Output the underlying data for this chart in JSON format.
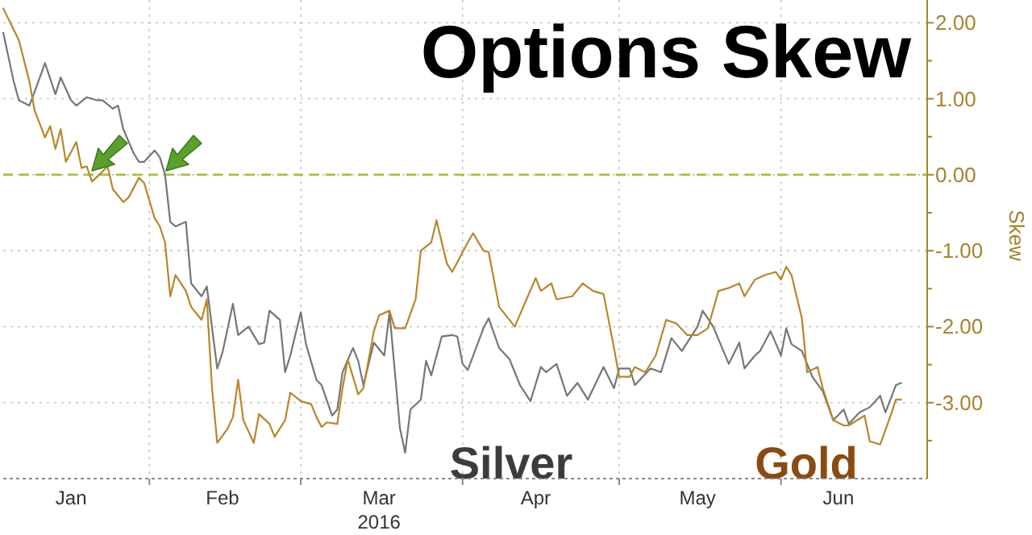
{
  "chart_data": {
    "type": "line",
    "title": "Options Skew",
    "xlabel": "2016",
    "ylabel": "Skew",
    "xlim": [
      "2016-01-04",
      "2016-06-29"
    ],
    "xticks": [
      {
        "value": "2016-01-17",
        "label": "Jan"
      },
      {
        "value": "2016-02-01",
        "label": null
      },
      {
        "value": "2016-02-15",
        "label": "Feb"
      },
      {
        "value": "2016-03-01",
        "label": null
      },
      {
        "value": "2016-03-16",
        "label": "Mar"
      },
      {
        "value": "2016-04-01",
        "label": null
      },
      {
        "value": "2016-04-15",
        "label": "Apr"
      },
      {
        "value": "2016-05-01",
        "label": null
      },
      {
        "value": "2016-05-16",
        "label": "May"
      },
      {
        "value": "2016-06-01",
        "label": null
      },
      {
        "value": "2016-06-12",
        "label": "Jun"
      }
    ],
    "ylim": [
      -4,
      2.3
    ],
    "yticks": [
      {
        "value": -3.5,
        "label": null
      },
      {
        "value": -3,
        "label": "-3.00"
      },
      {
        "value": -2.5,
        "label": null
      },
      {
        "value": -2,
        "label": "-2.00"
      },
      {
        "value": -1.5,
        "label": null
      },
      {
        "value": -1,
        "label": "-1.00"
      },
      {
        "value": -0.5,
        "label": null
      },
      {
        "value": 0,
        "label": "0.00"
      },
      {
        "value": 0.5,
        "label": null
      },
      {
        "value": 1,
        "label": "1.00"
      },
      {
        "value": 1.5,
        "label": null
      },
      {
        "value": 2,
        "label": "2.00"
      }
    ],
    "grid": true,
    "legend": false,
    "line_style": "solid",
    "ref_lines": [
      {
        "axis": "y",
        "value": 0,
        "label": null,
        "color": "#a6c03c",
        "line_style": "dashed"
      }
    ],
    "series": [
      {
        "name": "Silver",
        "color": "#767676",
        "x": [
          "2016-01-04",
          "2016-01-06",
          "2016-01-07",
          "2016-01-09",
          "2016-01-10",
          "2016-01-12",
          "2016-01-14",
          "2016-01-15",
          "2016-01-17",
          "2016-01-18",
          "2016-01-20",
          "2016-01-22",
          "2016-01-23",
          "2016-01-25",
          "2016-01-26",
          "2016-01-27",
          "2016-01-29",
          "2016-01-30",
          "2016-01-31",
          "2016-02-02",
          "2016-02-03",
          "2016-02-04",
          "2016-02-05",
          "2016-02-06",
          "2016-02-08",
          "2016-02-09",
          "2016-02-11",
          "2016-02-12",
          "2016-02-14",
          "2016-02-15",
          "2016-02-17",
          "2016-02-18",
          "2016-02-20",
          "2016-02-22",
          "2016-02-23",
          "2016-02-24",
          "2016-02-26",
          "2016-02-27",
          "2016-02-28",
          "2016-03-01",
          "2016-03-02",
          "2016-03-04",
          "2016-03-05",
          "2016-03-07",
          "2016-03-08",
          "2016-03-09",
          "2016-03-11",
          "2016-03-12",
          "2016-03-13",
          "2016-03-15",
          "2016-03-17",
          "2016-03-18",
          "2016-03-20",
          "2016-03-21",
          "2016-03-22",
          "2016-03-24",
          "2016-03-25",
          "2016-03-26",
          "2016-03-28",
          "2016-03-30",
          "2016-03-31",
          "2016-04-01",
          "2016-04-02",
          "2016-04-05",
          "2016-04-06",
          "2016-04-08",
          "2016-04-10",
          "2016-04-12",
          "2016-04-14",
          "2016-04-16",
          "2016-04-17",
          "2016-04-19",
          "2016-04-21",
          "2016-04-23",
          "2016-04-25",
          "2016-04-28",
          "2016-04-30",
          "2016-05-01",
          "2016-05-03",
          "2016-05-04",
          "2016-05-07",
          "2016-05-09",
          "2016-05-11",
          "2016-05-13",
          "2016-05-16",
          "2016-05-17",
          "2016-05-19",
          "2016-05-22",
          "2016-05-24",
          "2016-05-25",
          "2016-05-27",
          "2016-05-28",
          "2016-05-30",
          "2016-06-01",
          "2016-06-02",
          "2016-06-03",
          "2016-06-05",
          "2016-06-07",
          "2016-06-09",
          "2016-06-11",
          "2016-06-13",
          "2016-06-14",
          "2016-06-16",
          "2016-06-18",
          "2016-06-20",
          "2016-06-21",
          "2016-06-23",
          "2016-06-24"
        ],
        "values": [
          1.87,
          1.23,
          0.98,
          0.91,
          1.09,
          1.47,
          1.06,
          1.28,
          0.98,
          0.91,
          1.02,
          0.98,
          0.98,
          0.87,
          0.91,
          0.6,
          0.28,
          0.17,
          0.17,
          0.32,
          0.23,
          0,
          -0.62,
          -0.68,
          -0.62,
          -1.43,
          -1.6,
          -1.47,
          -2.55,
          -2.34,
          -1.7,
          -2.11,
          -2,
          -2.23,
          -2.21,
          -1.79,
          -1.91,
          -2.6,
          -2.38,
          -1.81,
          -2.23,
          -2.7,
          -2.77,
          -3.17,
          -3.09,
          -2.6,
          -2.28,
          -2.45,
          -2.77,
          -2.21,
          -2.38,
          -1.81,
          -3.34,
          -3.66,
          -3.09,
          -2.96,
          -2.45,
          -2.64,
          -2.13,
          -2.11,
          -2.13,
          -2.49,
          -2.57,
          -2.02,
          -1.89,
          -2.28,
          -2.43,
          -2.77,
          -2.98,
          -2.53,
          -2.6,
          -2.49,
          -2.91,
          -2.74,
          -2.96,
          -2.53,
          -2.81,
          -2.55,
          -2.55,
          -2.77,
          -2.55,
          -2.6,
          -2.15,
          -2.32,
          -2,
          -1.79,
          -2,
          -2.49,
          -2.21,
          -2.55,
          -2.38,
          -2.32,
          -2.06,
          -2.38,
          -2.02,
          -2.23,
          -2.32,
          -2.66,
          -2.85,
          -3.23,
          -3.09,
          -3.28,
          -3.13,
          -3.06,
          -2.91,
          -3.13,
          -2.77,
          -2.74
        ]
      },
      {
        "name": "Gold",
        "color": "#b8862b",
        "x": [
          "2016-01-04",
          "2016-01-06",
          "2016-01-07",
          "2016-01-09",
          "2016-01-10",
          "2016-01-12",
          "2016-01-13",
          "2016-01-14",
          "2016-01-15",
          "2016-01-16",
          "2016-01-18",
          "2016-01-19",
          "2016-01-20",
          "2016-01-21",
          "2016-01-23",
          "2016-01-24",
          "2016-01-25",
          "2016-01-27",
          "2016-01-28",
          "2016-01-30",
          "2016-01-31",
          "2016-02-02",
          "2016-02-03",
          "2016-02-04",
          "2016-02-05",
          "2016-02-06",
          "2016-02-08",
          "2016-02-09",
          "2016-02-11",
          "2016-02-12",
          "2016-02-13",
          "2016-02-14",
          "2016-02-16",
          "2016-02-17",
          "2016-02-18",
          "2016-02-19",
          "2016-02-21",
          "2016-02-22",
          "2016-02-24",
          "2016-02-25",
          "2016-02-27",
          "2016-02-28",
          "2016-03-01",
          "2016-03-03",
          "2016-03-04",
          "2016-03-05",
          "2016-03-06",
          "2016-03-08",
          "2016-03-09",
          "2016-03-10",
          "2016-03-12",
          "2016-03-13",
          "2016-03-15",
          "2016-03-16",
          "2016-03-18",
          "2016-03-19",
          "2016-03-21",
          "2016-03-23",
          "2016-03-24",
          "2016-03-26",
          "2016-03-27",
          "2016-03-29",
          "2016-03-30",
          "2016-04-02",
          "2016-04-03",
          "2016-04-05",
          "2016-04-06",
          "2016-04-08",
          "2016-04-11",
          "2016-04-13",
          "2016-04-15",
          "2016-04-16",
          "2016-04-18",
          "2016-04-19",
          "2016-04-22",
          "2016-04-24",
          "2016-04-26",
          "2016-04-28",
          "2016-04-30",
          "2016-05-01",
          "2016-05-03",
          "2016-05-04",
          "2016-05-06",
          "2016-05-08",
          "2016-05-10",
          "2016-05-12",
          "2016-05-14",
          "2016-05-16",
          "2016-05-18",
          "2016-05-20",
          "2016-05-22",
          "2016-05-24",
          "2016-05-25",
          "2016-05-27",
          "2016-05-29",
          "2016-05-31",
          "2016-06-01",
          "2016-06-02",
          "2016-06-03",
          "2016-06-05",
          "2016-06-06",
          "2016-06-08",
          "2016-06-09",
          "2016-06-11",
          "2016-06-13",
          "2016-06-14",
          "2016-06-17",
          "2016-06-18",
          "2016-06-20",
          "2016-06-22",
          "2016-06-23",
          "2016-06-24"
        ],
        "values": [
          2.19,
          1.91,
          1.77,
          1.23,
          0.85,
          0.49,
          0.64,
          0.34,
          0.6,
          0.17,
          0.43,
          0.09,
          0.11,
          -0.09,
          0.04,
          0.11,
          -0.19,
          -0.36,
          -0.3,
          -0.04,
          -0.11,
          -0.57,
          -0.68,
          -0.89,
          -1.6,
          -1.32,
          -1.53,
          -1.74,
          -1.91,
          -1.64,
          -2.81,
          -3.53,
          -3.34,
          -3.19,
          -2.7,
          -3.23,
          -3.53,
          -3.15,
          -3.28,
          -3.45,
          -3.23,
          -2.87,
          -2.98,
          -3.02,
          -3.19,
          -3.32,
          -3.26,
          -3.28,
          -2.81,
          -2.43,
          -2.89,
          -2.81,
          -2.06,
          -1.85,
          -1.79,
          -2.02,
          -2.02,
          -1.64,
          -1,
          -0.89,
          -0.6,
          -1.17,
          -1.28,
          -0.89,
          -0.77,
          -1,
          -1.02,
          -1.74,
          -2,
          -1.68,
          -1.36,
          -1.53,
          -1.43,
          -1.64,
          -1.6,
          -1.43,
          -1.53,
          -1.57,
          -2.28,
          -2.66,
          -2.66,
          -2.53,
          -2.6,
          -2.38,
          -1.91,
          -1.96,
          -2.11,
          -2.11,
          -2.02,
          -1.53,
          -1.49,
          -1.43,
          -1.6,
          -1.38,
          -1.32,
          -1.28,
          -1.38,
          -1.21,
          -1.32,
          -1.89,
          -2.6,
          -2.53,
          -2.81,
          -3.23,
          -3.3,
          -3.3,
          -3.17,
          -3.51,
          -3.55,
          -3.17,
          -2.96,
          -2.96
        ]
      }
    ]
  }
}
